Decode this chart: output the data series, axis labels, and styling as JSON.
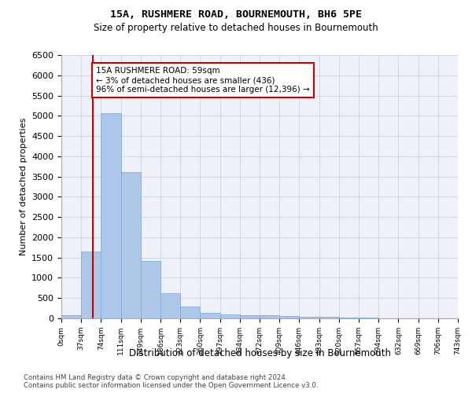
{
  "title": "15A, RUSHMERE ROAD, BOURNEMOUTH, BH6 5PE",
  "subtitle": "Size of property relative to detached houses in Bournemouth",
  "xlabel": "Distribution of detached houses by size in Bournemouth",
  "ylabel": "Number of detached properties",
  "bar_values": [
    70,
    1650,
    5060,
    3600,
    1410,
    620,
    290,
    130,
    90,
    80,
    70,
    50,
    40,
    30,
    20,
    10,
    5,
    5,
    5,
    5
  ],
  "bar_labels": [
    "0sqm",
    "37sqm",
    "74sqm",
    "111sqm",
    "149sqm",
    "186sqm",
    "223sqm",
    "260sqm",
    "297sqm",
    "334sqm",
    "372sqm",
    "409sqm",
    "446sqm",
    "483sqm",
    "520sqm",
    "557sqm",
    "594sqm",
    "632sqm",
    "669sqm",
    "706sqm",
    "743sqm"
  ],
  "bar_color": "#aec6e8",
  "bar_edge_color": "#7aa8d4",
  "grid_color": "#d0d8e8",
  "background_color": "#eef2f8",
  "vline_x": 1.59,
  "vline_color": "#cc0000",
  "annotation_text": "15A RUSHMERE ROAD: 59sqm\n← 3% of detached houses are smaller (436)\n96% of semi-detached houses are larger (12,396) →",
  "annotation_box_color": "#ffffff",
  "annotation_border_color": "#cc0000",
  "ylim": [
    0,
    6500
  ],
  "yticks": [
    0,
    500,
    1000,
    1500,
    2000,
    2500,
    3000,
    3500,
    4000,
    4500,
    5000,
    5500,
    6000,
    6500
  ],
  "footer_line1": "Contains HM Land Registry data © Crown copyright and database right 2024.",
  "footer_line2": "Contains public sector information licensed under the Open Government Licence v3.0."
}
